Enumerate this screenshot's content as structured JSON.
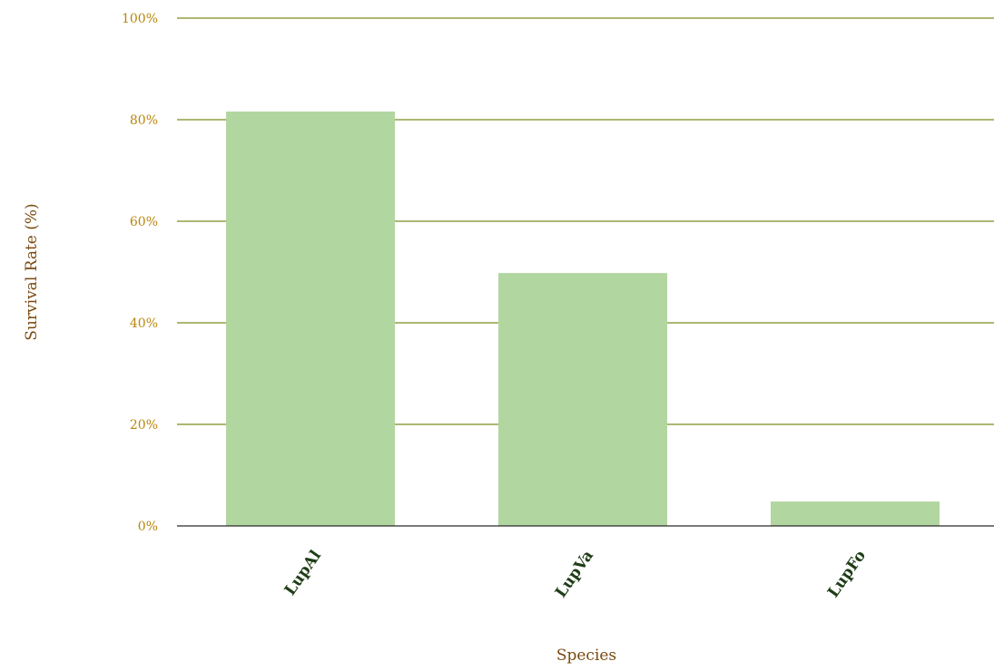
{
  "chart_data": {
    "type": "bar",
    "categories": [
      "LupAl",
      "LupVa",
      "LupFo"
    ],
    "values": [
      81.6,
      49.8,
      4.8
    ],
    "xlabel": "Species",
    "ylabel": "Survival Rate (%)",
    "ylim": [
      0,
      100
    ],
    "yticks": [
      0,
      20,
      40,
      60,
      80,
      100
    ],
    "ytick_suffix": "%",
    "grid": true,
    "colors": {
      "bar": "#b2d6a0",
      "grid": "#7d8a1a",
      "baseline": "#2b2b2b",
      "tick_label": "#b8860b",
      "category_label": "#1f3d16",
      "axis_title": "#7a4a0f"
    }
  }
}
